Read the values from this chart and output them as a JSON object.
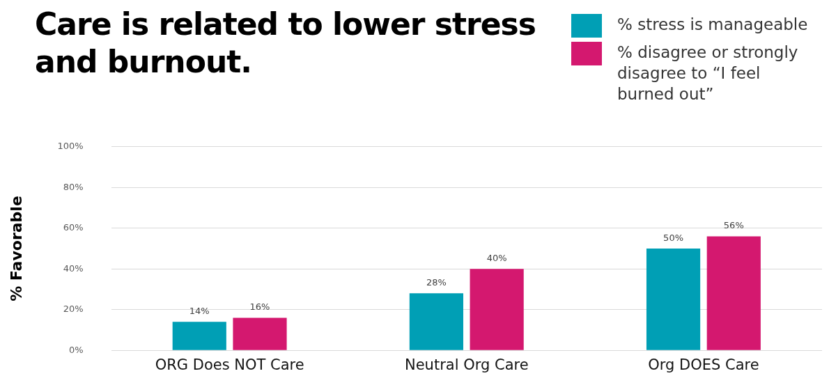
{
  "chart_data": {
    "type": "bar",
    "title": "Care is related to lower stress and burnout.",
    "ylabel": "% Favorable",
    "categories": [
      "ORG Does NOT Care",
      "Neutral Org Care",
      "Org DOES Care"
    ],
    "series": [
      {
        "name": "% stress is manageable",
        "color": "#009fb5",
        "values": [
          14,
          28,
          50
        ],
        "value_labels": [
          "14%",
          "28%",
          "50%"
        ]
      },
      {
        "name": "% disagree or strongly disagree to “I feel burned out”",
        "color": "#d4186f",
        "values": [
          16,
          40,
          56
        ],
        "value_labels": [
          "16%",
          "40%",
          "56%"
        ]
      }
    ],
    "ylim": [
      0,
      100
    ],
    "yticks": [
      {
        "value": 0,
        "label": "0%"
      },
      {
        "value": 20,
        "label": "20%"
      },
      {
        "value": 40,
        "label": "40%"
      },
      {
        "value": 60,
        "label": "60%"
      },
      {
        "value": 80,
        "label": "80%"
      },
      {
        "value": 100,
        "label": "100%"
      }
    ],
    "grid": "y",
    "legend": "top right"
  }
}
